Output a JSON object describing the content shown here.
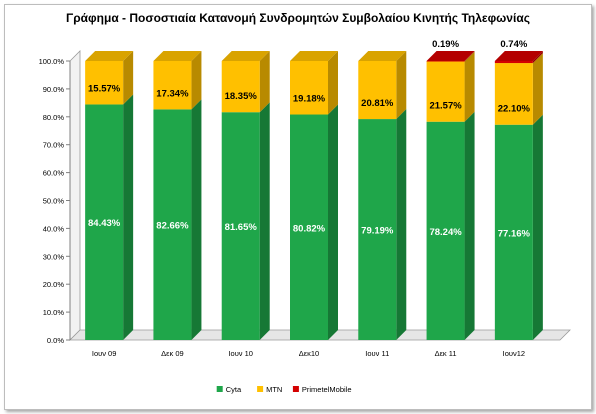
{
  "chart_data": {
    "type": "bar",
    "stacked": true,
    "title": "Γράφημα    - Ποσοστιαία Κατανομή Συνδρομητών Συμβολαίου Κινητής Τηλεφωνίας",
    "xlabel": "",
    "ylabel": "",
    "categories": [
      "Ιουν 09",
      "Δεκ 09",
      "Ιουν 10",
      "Δεκ10",
      "Ιουν 11",
      "Δεκ 11",
      "Ιουν12"
    ],
    "ylim": [
      0,
      100
    ],
    "yticks": [
      "0.0%",
      "10.0%",
      "20.0%",
      "30.0%",
      "40.0%",
      "50.0%",
      "60.0%",
      "70.0%",
      "80.0%",
      "90.0%",
      "100.0%"
    ],
    "series": [
      {
        "name": "Cyta",
        "color": "#1fa64a",
        "values": [
          84.43,
          82.66,
          81.65,
          80.82,
          79.19,
          78.24,
          77.16
        ],
        "labels": [
          "84.43%",
          "82.66%",
          "81.65%",
          "80.82%",
          "79.19%",
          "78.24%",
          "77.16%"
        ]
      },
      {
        "name": "MTN",
        "color": "#ffc000",
        "values": [
          15.57,
          17.34,
          18.35,
          19.18,
          20.81,
          21.57,
          22.1
        ],
        "labels": [
          "15.57%",
          "17.34%",
          "18.35%",
          "19.18%",
          "20.81%",
          "21.57%",
          "22.10%"
        ]
      },
      {
        "name": "PrimetelMobile",
        "color": "#d40000",
        "values": [
          0,
          0,
          0,
          0,
          0,
          0.19,
          0.74
        ],
        "labels": [
          "",
          "",
          "",
          "",
          "",
          "0.19%",
          "0.74%"
        ]
      }
    ],
    "legend": {
      "position": "bottom",
      "entries": [
        "Cyta",
        "MTN",
        "PrimetelMobile"
      ]
    },
    "grid": false,
    "style": "3d-stacked-column"
  }
}
